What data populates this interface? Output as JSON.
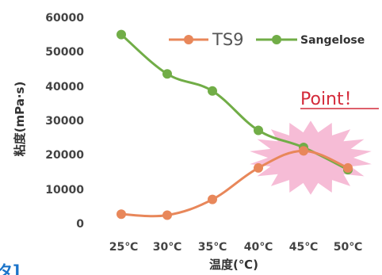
{
  "chart_data": {
    "type": "line",
    "title": "",
    "xlabel": "温度(℃)",
    "ylabel": "粘度(mPa·s)",
    "ylim": [
      0,
      60000
    ],
    "y_ticks": [
      "0",
      "10000",
      "20000",
      "30000",
      "40000",
      "50000",
      "60000"
    ],
    "categories": [
      "25℃",
      "30℃",
      "35℃",
      "40℃",
      "45℃",
      "50℃"
    ],
    "grid": false,
    "legend_position": "top-right",
    "series": [
      {
        "name": "TS9",
        "color": "#e8875a",
        "values": [
          2500,
          2200,
          6800,
          16000,
          21000,
          16000
        ]
      },
      {
        "name": "Sangelose",
        "color": "#71ad47",
        "values": [
          55000,
          43500,
          38500,
          27000,
          22000,
          15500
        ]
      }
    ],
    "annotation": {
      "text": "Point！",
      "color": "#d42a3a",
      "burst_color": "#f5b5d2"
    }
  },
  "corner_fragment": "タ]"
}
